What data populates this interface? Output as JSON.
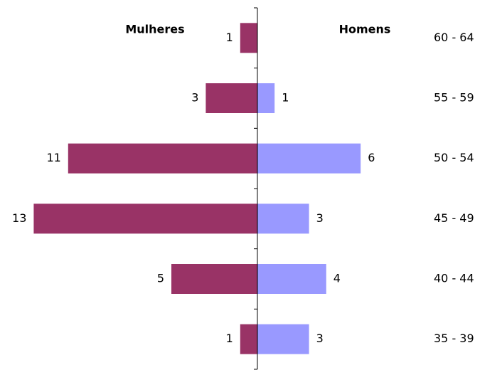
{
  "chart_data": {
    "type": "pyramid",
    "categories": [
      "60 - 64",
      "55 - 59",
      "50 - 54",
      "45 - 49",
      "40 - 44",
      "35 - 39"
    ],
    "series": [
      {
        "name": "Mulheres",
        "color": "#993366",
        "values": [
          1,
          3,
          11,
          13,
          5,
          1
        ]
      },
      {
        "name": "Homens",
        "color": "#9999ff",
        "values": [
          null,
          1,
          6,
          3,
          4,
          3
        ]
      }
    ]
  }
}
